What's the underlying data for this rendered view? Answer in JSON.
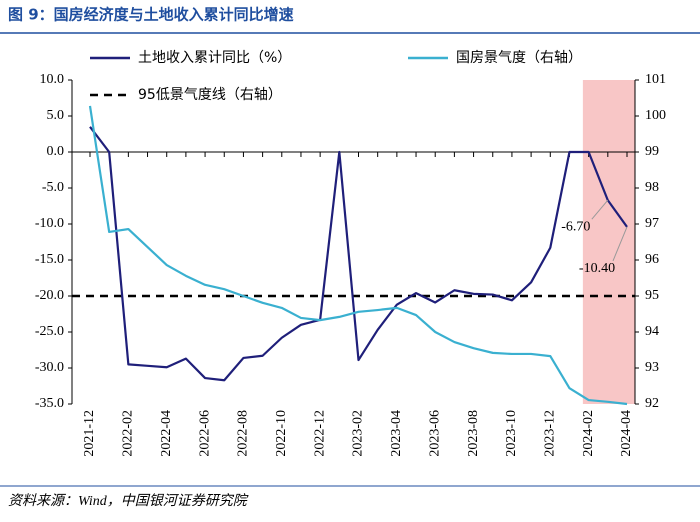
{
  "chart_data": {
    "type": "line",
    "title": "图 9：国房经济度与土地收入累计同比增速",
    "source": "资料来源：Wind，中国银河证券研究院",
    "categories": [
      "2021-12",
      null,
      "2022-02",
      null,
      "2022-04",
      null,
      "2022-06",
      null,
      "2022-08",
      null,
      "2022-10",
      null,
      "2022-12",
      null,
      "2023-02",
      null,
      "2023-04",
      null,
      "2023-06",
      null,
      "2023-08",
      null,
      "2023-10",
      null,
      "2023-12",
      null,
      "2024-02",
      null,
      "2024-04"
    ],
    "series": [
      {
        "name": "土地收入累计同比（%）",
        "color": "#1f1f7a",
        "values": [
          3.5,
          0,
          -29.5,
          -29.7,
          -29.9,
          -28.7,
          -31.4,
          -31.7,
          -28.6,
          -28.3,
          -25.8,
          -24.0,
          -23.3,
          0,
          -28.9,
          -24.7,
          -21.2,
          -19.6,
          -20.9,
          -19.2,
          -19.7,
          -19.8,
          -20.6,
          -18.1,
          -13.3,
          0,
          0,
          -6.7,
          -10.4
        ],
        "value_labels": [
          null,
          null,
          null,
          null,
          null,
          null,
          null,
          null,
          null,
          null,
          null,
          null,
          null,
          null,
          null,
          null,
          null,
          null,
          null,
          null,
          null,
          null,
          null,
          null,
          null,
          null,
          null,
          "-6.70",
          "-10.40"
        ]
      },
      {
        "name": "国房景气度（右轴）",
        "color": "#3ab0d0",
        "axis": "y2",
        "values": [
          100.28,
          96.78,
          96.86,
          96.36,
          95.86,
          95.56,
          95.31,
          95.19,
          95.0,
          94.81,
          94.67,
          94.39,
          94.33,
          94.42,
          94.56,
          94.61,
          94.67,
          94.47,
          94.0,
          93.72,
          93.55,
          93.42,
          93.39,
          93.39,
          93.33,
          92.44,
          92.11,
          92.06,
          92.0
        ]
      }
    ],
    "reference_line": {
      "name": "95低景气度线（右轴）",
      "value": 95,
      "axis": "y2",
      "color": "#000000"
    },
    "highlight_color": "#f8c6c6",
    "ylim": [
      -35,
      10
    ],
    "yticks": [
      {
        "value": 10,
        "label": "10.0"
      },
      {
        "value": 5,
        "label": "5.0"
      },
      {
        "value": 0,
        "label": "0.0"
      },
      {
        "value": -5,
        "label": "-5.0"
      },
      {
        "value": -10,
        "label": "-10.0"
      },
      {
        "value": -15,
        "label": "-15.0"
      },
      {
        "value": -20,
        "label": "-20.0"
      },
      {
        "value": -25,
        "label": "-25.0"
      },
      {
        "value": -30,
        "label": "-30.0"
      },
      {
        "value": -35,
        "label": "-35.0"
      }
    ],
    "y2lim": [
      92,
      101
    ],
    "y2ticks": [
      92,
      93,
      94,
      95,
      96,
      97,
      98,
      99,
      100,
      101
    ]
  }
}
